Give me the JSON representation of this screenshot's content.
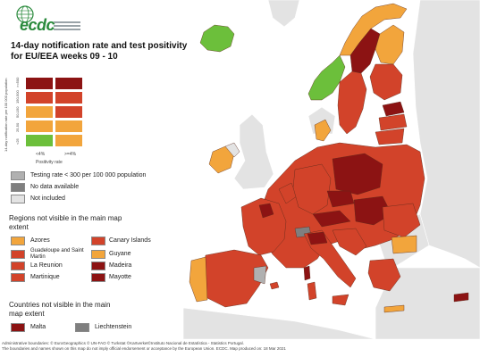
{
  "logo": {
    "text": "ecdc"
  },
  "title_line1": "14-day notification rate and test positivity",
  "title_line2": "for EU/EEA weeks 09 - 10",
  "legend_grid": {
    "y_axis_label": "14-day notification rate per 100 000 population",
    "y_ticks": [
      "<25",
      "25-50",
      "50-150",
      "150-500",
      ">=500"
    ],
    "x_axis_label": "Positivity rate",
    "x_ticks": [
      "<4%",
      ">=4%"
    ],
    "colors": {
      "green": "#6cbf3b",
      "light_orange": "#f2a53c",
      "orange_red": "#d2432a",
      "dark_red": "#8c1313"
    }
  },
  "legend_other": [
    {
      "label": "Testing rate < 300 per 100 000 population",
      "color": "#b0b0b0"
    },
    {
      "label": "No data available",
      "color": "#7f7f7f"
    },
    {
      "label": "Not included",
      "color": "#e3e3e3"
    }
  ],
  "regions_title": "Regions not visible in the main map extent",
  "regions": [
    {
      "label": "Azores",
      "color": "#f2a53c"
    },
    {
      "label": "Canary Islands",
      "color": "#d2432a"
    },
    {
      "label": "Guadeloupe and Saint Martin",
      "color": "#d2432a"
    },
    {
      "label": "Guyane",
      "color": "#f2a53c"
    },
    {
      "label": "La Reunion",
      "color": "#d2432a"
    },
    {
      "label": "Madeira",
      "color": "#8c1313"
    },
    {
      "label": "Martinique",
      "color": "#d2432a"
    },
    {
      "label": "Mayotte",
      "color": "#8c1313"
    }
  ],
  "countries_title": "Countries not visible in the main map extent",
  "countries": [
    {
      "label": "Malta",
      "color": "#8c1313"
    },
    {
      "label": "Liechtenstein",
      "color": "#7f7f7f"
    }
  ],
  "footer_line1": "Administrative boundaries: © EuroGeographics © UN-FAO © Turkstat ©Kartverket©Instituto Nacional de Estatística - Statistics Portugal.",
  "footer_line2": "The boundaries and names shown on this map do not imply official endorsement or acceptance by the European Union. ECDC. Map produced on: 18 Mar 2021",
  "map": {
    "colors": {
      "sea": "#ffffff",
      "not_included": "#e3e3e3",
      "border": "#7a2a1a"
    }
  }
}
